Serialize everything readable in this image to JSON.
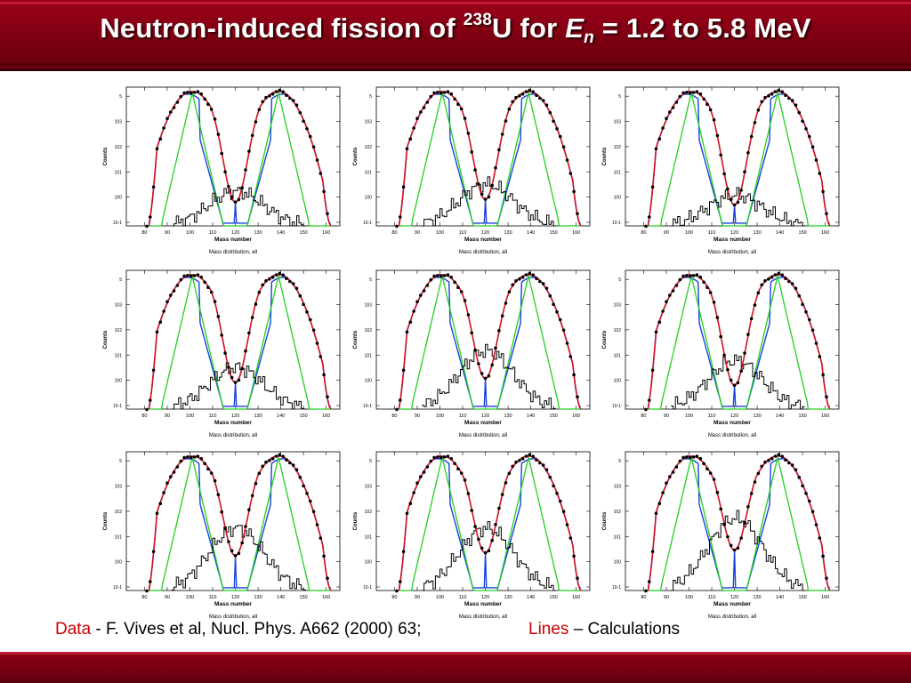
{
  "title": {
    "main": "Neutron-induced fission of ",
    "superscript": "238",
    "element": "U for ",
    "variable": "E",
    "subscript": "n",
    "rest": " = 1.2 to 5.8 MeV"
  },
  "caption": {
    "data_label": "Data",
    "data_text": " - F. Vives et al, Nucl. Phys. A662 (2000) 63;",
    "lines_label": "Lines",
    "lines_text": " – Calculations"
  },
  "colors": {
    "header": "#7e0012",
    "data_points": "#000000",
    "total": "#d01020",
    "component_asym": "#1840e0",
    "component_sym": "#20d020",
    "component_black": "#000000",
    "label_highlight": "#cc0000"
  },
  "chart_data": {
    "type": "line",
    "layout": "3x3 grid",
    "xlabel": "Mass number",
    "ylabel": "Counts",
    "panel_caption": "Mass distribution, all",
    "x_ticks": [
      80,
      90,
      100,
      110,
      120,
      130,
      140,
      150,
      160
    ],
    "xlim": [
      72,
      166
    ],
    "yscale": "log",
    "panels": [
      {
        "row": 1,
        "col": 1,
        "sym_depth": 0.8,
        "black_peak": 0.25,
        "red_variant": 0
      },
      {
        "row": 1,
        "col": 2,
        "sym_depth": 0.78,
        "black_peak": 0.3,
        "red_variant": 0
      },
      {
        "row": 1,
        "col": 3,
        "sym_depth": 0.82,
        "black_peak": 0.22,
        "red_variant": 0
      },
      {
        "row": 2,
        "col": 1,
        "sym_depth": 0.78,
        "black_peak": 0.3,
        "red_variant": 0
      },
      {
        "row": 2,
        "col": 2,
        "sym_depth": 0.75,
        "black_peak": 0.42,
        "red_variant": 1
      },
      {
        "row": 2,
        "col": 3,
        "sym_depth": 0.8,
        "black_peak": 0.35,
        "red_variant": 0
      },
      {
        "row": 3,
        "col": 1,
        "sym_depth": 0.72,
        "black_peak": 0.45,
        "red_variant": 0
      },
      {
        "row": 3,
        "col": 2,
        "sym_depth": 0.7,
        "black_peak": 0.45,
        "red_variant": 0
      },
      {
        "row": 3,
        "col": 3,
        "sym_depth": 0.68,
        "black_peak": 0.52,
        "red_variant": 0
      }
    ]
  }
}
